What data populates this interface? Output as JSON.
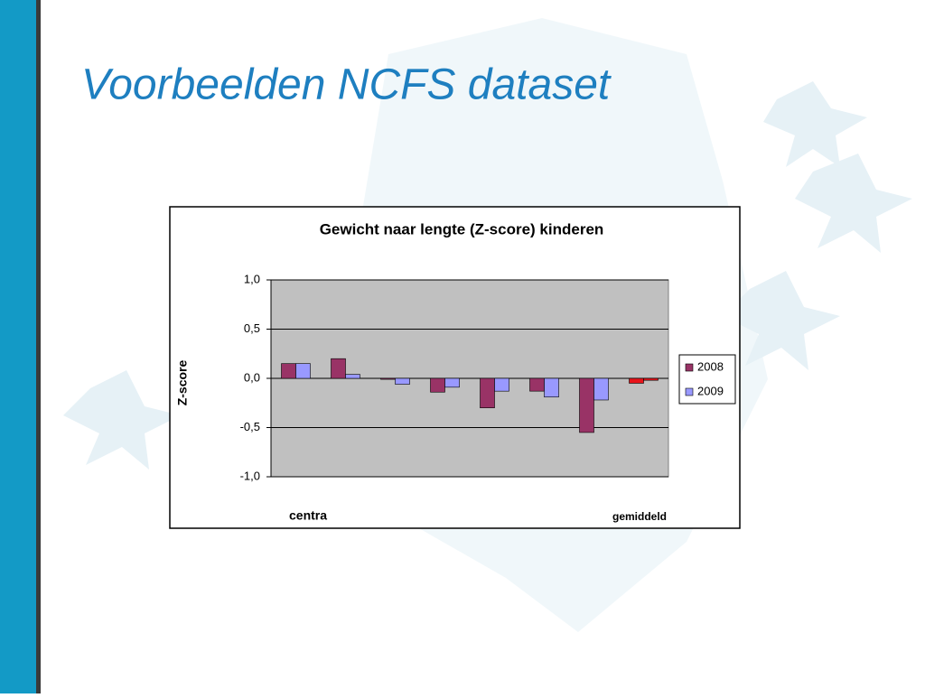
{
  "slide_title": "Voorbeelden NCFS dataset",
  "chart_data": {
    "type": "bar",
    "title": "Gewicht naar lengte (Z-score) kinderen",
    "y_label": "Z-score",
    "annotations": [
      "centra",
      "gemiddeld"
    ],
    "categories": [
      null,
      null,
      null,
      null,
      null,
      null,
      null,
      null
    ],
    "series": [
      {
        "name": "2008",
        "color": "#993366",
        "values": [
          0.15,
          0.2,
          -0.01,
          -0.14,
          -0.3,
          -0.13,
          -0.55,
          -0.05
        ],
        "point_colors": [
          null,
          null,
          null,
          null,
          null,
          null,
          null,
          "#e8141b"
        ]
      },
      {
        "name": "2009",
        "color": "#9999ff",
        "values": [
          0.15,
          0.04,
          -0.06,
          -0.09,
          -0.13,
          -0.19,
          -0.22,
          -0.02
        ],
        "point_colors": [
          null,
          null,
          null,
          null,
          null,
          null,
          null,
          "#e8141b"
        ]
      }
    ],
    "ylim": [
      -1,
      1
    ],
    "yticks": [
      {
        "value": -1,
        "label": "-1,0"
      },
      {
        "value": -0.5,
        "label": "-0,5"
      },
      {
        "value": 0,
        "label": "0,0"
      },
      {
        "value": 0.5,
        "label": "0,5"
      },
      {
        "value": 1,
        "label": "1,0"
      }
    ],
    "grid": true,
    "plot_background": "#c0c0c0",
    "legend": "right"
  }
}
